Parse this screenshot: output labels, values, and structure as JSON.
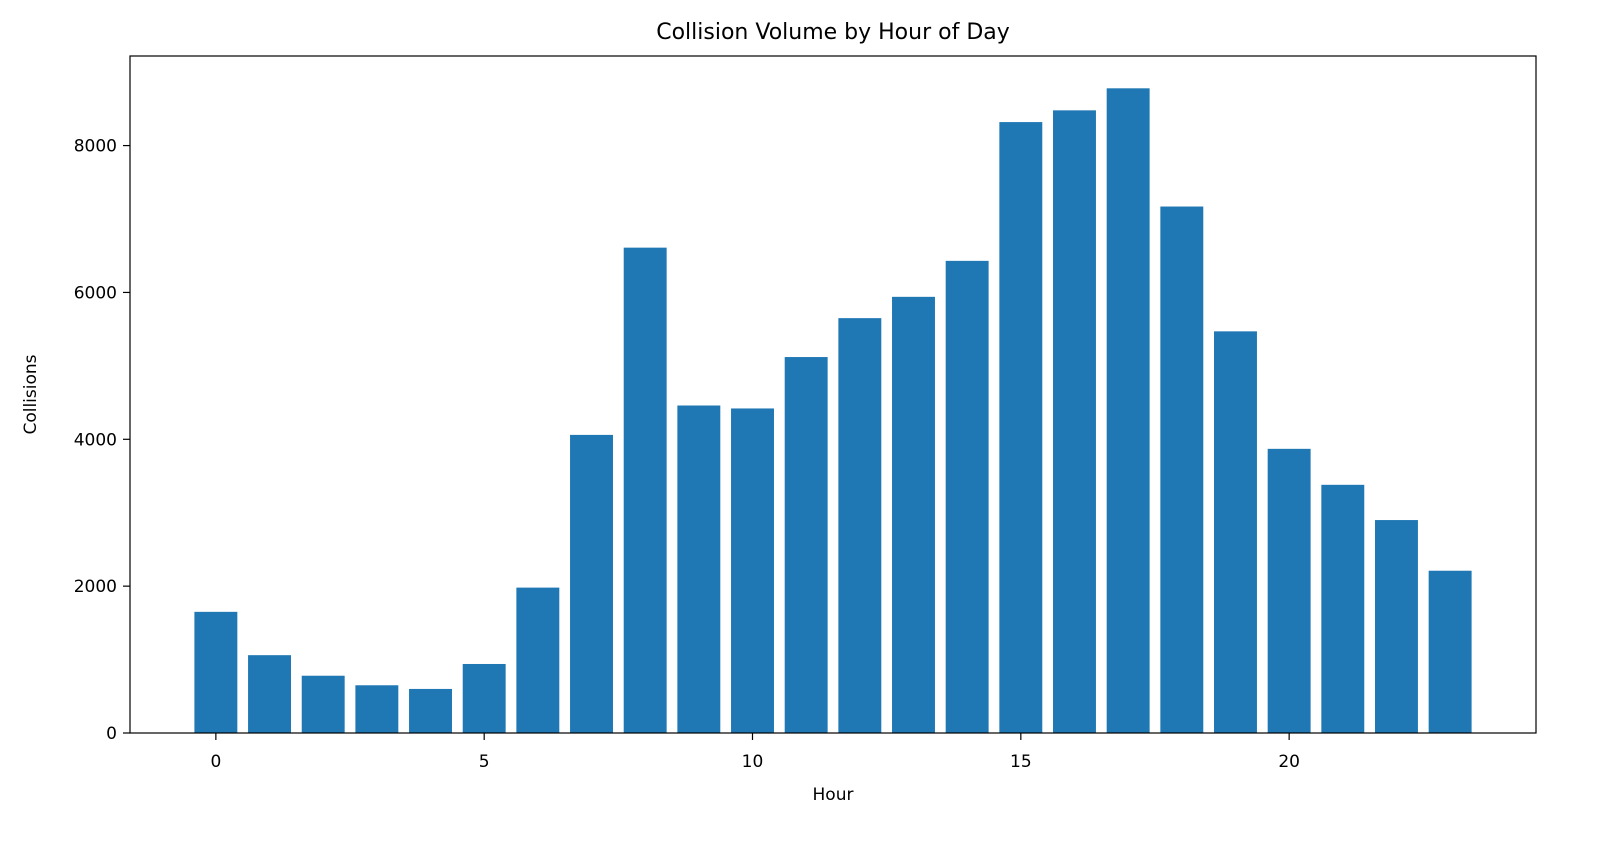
{
  "chart_data": {
    "type": "bar",
    "title": "Collision Volume by Hour of Day",
    "xlabel": "Hour",
    "ylabel": "Collisions",
    "x": [
      0,
      1,
      2,
      3,
      4,
      5,
      6,
      7,
      8,
      9,
      10,
      11,
      12,
      13,
      14,
      15,
      16,
      17,
      18,
      19,
      20,
      21,
      22,
      23
    ],
    "values": [
      1650,
      1060,
      780,
      650,
      600,
      940,
      1980,
      4060,
      6610,
      4460,
      4420,
      5120,
      5650,
      5940,
      6430,
      8320,
      8480,
      8780,
      7170,
      5470,
      3870,
      3380,
      2900,
      2210
    ],
    "xlim": [
      -1.6,
      24.6
    ],
    "ylim": [
      0,
      9220
    ],
    "xticks": [
      0,
      5,
      10,
      15,
      20
    ],
    "xtick_labels": [
      "0",
      "5",
      "10",
      "15",
      "20"
    ],
    "yticks": [
      0,
      2000,
      4000,
      6000,
      8000
    ],
    "ytick_labels": [
      "0",
      "2000",
      "4000",
      "6000",
      "8000"
    ],
    "bar_color": "#1f77b4",
    "grid": false,
    "legend": "none"
  }
}
